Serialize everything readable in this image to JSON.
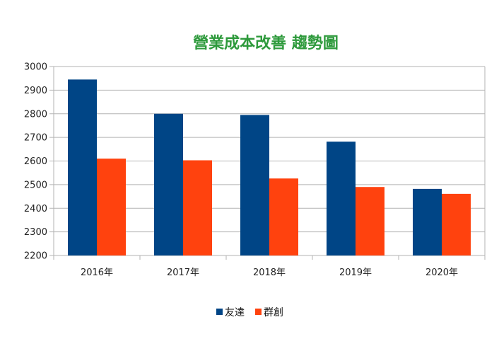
{
  "chart_data": {
    "type": "bar",
    "title": "營業成本改善 趨勢圖",
    "categories": [
      "2016年",
      "2017年",
      "2018年",
      "2019年",
      "2020年"
    ],
    "series": [
      {
        "name": "友達",
        "color": "#004586",
        "values": [
          2945,
          2800,
          2795,
          2682,
          2482
        ]
      },
      {
        "name": "群創",
        "color": "#ff420e",
        "values": [
          2610,
          2603,
          2526,
          2490,
          2461
        ]
      }
    ],
    "ylim": [
      2200,
      3000
    ],
    "yticks": [
      2200,
      2300,
      2400,
      2500,
      2600,
      2700,
      2800,
      2900,
      3000
    ],
    "title_color": "#2e9a3c",
    "grid": true,
    "legend_position": "bottom"
  }
}
